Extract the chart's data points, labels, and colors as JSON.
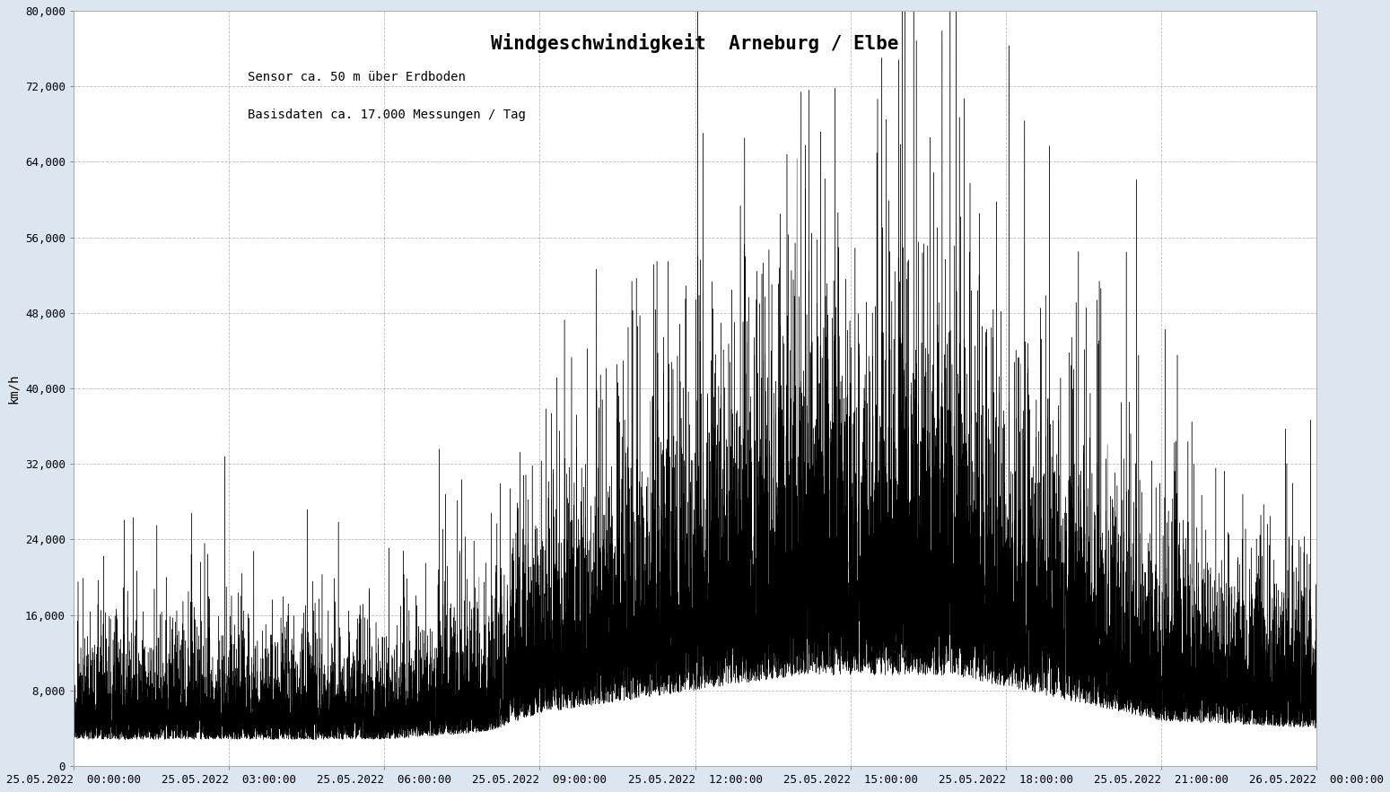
{
  "title": "Windgeschwindigkeit  Arneburg / Elbe",
  "subtitle_line1": "Sensor ca. 50 m über Erdboden",
  "subtitle_line2": "Basisdaten ca. 17.000 Messungen / Tag",
  "ylabel": "km/h",
  "ylim": [
    0,
    80000
  ],
  "yticks": [
    0,
    8000,
    16000,
    24000,
    32000,
    40000,
    48000,
    56000,
    64000,
    72000,
    80000
  ],
  "ytick_labels": [
    "0",
    "8,000",
    "16,000",
    "24,000",
    "32,000",
    "40,000",
    "48,000",
    "56,000",
    "64,000",
    "72,000",
    "80,000"
  ],
  "xtick_times": [
    "2022-05-25 00:00:00",
    "2022-05-25 03:00:00",
    "2022-05-25 06:00:00",
    "2022-05-25 09:00:00",
    "2022-05-25 12:00:00",
    "2022-05-25 15:00:00",
    "2022-05-25 18:00:00",
    "2022-05-25 21:00:00",
    "2022-05-26 00:00:00"
  ],
  "xtick_labels": [
    "25.05.2022  00:00:00",
    "25.05.2022  03:00:00",
    "25.05.2022  06:00:00",
    "25.05.2022  09:00:00",
    "25.05.2022  12:00:00",
    "25.05.2022  15:00:00",
    "25.05.2022  18:00:00",
    "25.05.2022  21:00:00",
    "26.05.2022  00:00:00"
  ],
  "line_color": "#000000",
  "background_color": "#dce6f1",
  "plot_bg_color": "#ffffff",
  "grid_color": "#aaaaaa",
  "title_fontsize": 15,
  "subtitle_fontsize": 10,
  "tick_fontsize": 9,
  "ylabel_fontsize": 10,
  "n_points": 17280,
  "seed": 42
}
